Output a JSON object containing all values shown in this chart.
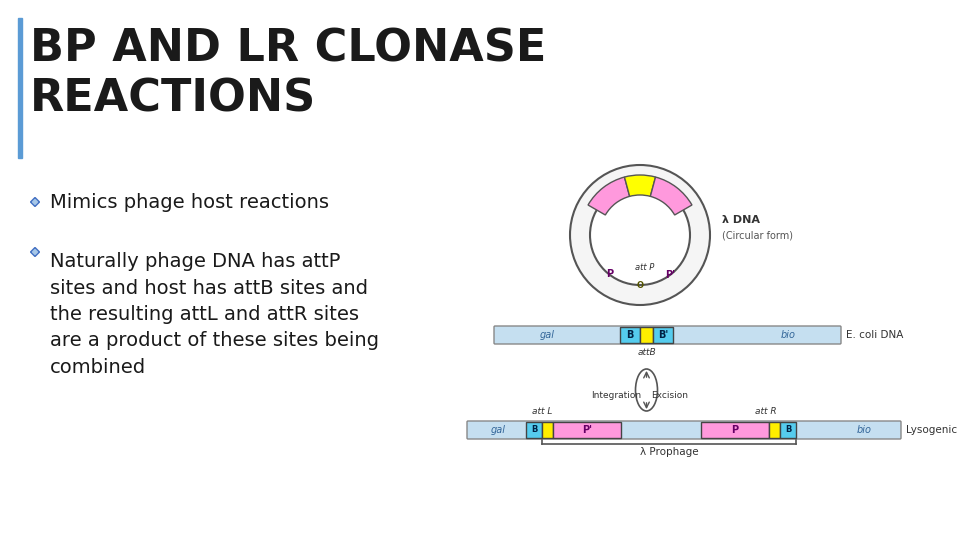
{
  "title_line1": "BP AND LR CLONASE",
  "title_line2": "REACTIONS",
  "title_color": "#1a1a1a",
  "title_fontsize": 32,
  "accent_bar_color": "#5b9bd5",
  "background_color": "#ffffff",
  "bullet1": "Mimics phage host reactions",
  "bullet2": "Naturally phage DNA has attP\nsites and host has attB sites and\nthe resulting attL and attR sites\nare a product of these sites being\ncombined",
  "bullet_color": "#4472c4",
  "bullet_fontsize": 14,
  "text_color": "#1a1a1a"
}
